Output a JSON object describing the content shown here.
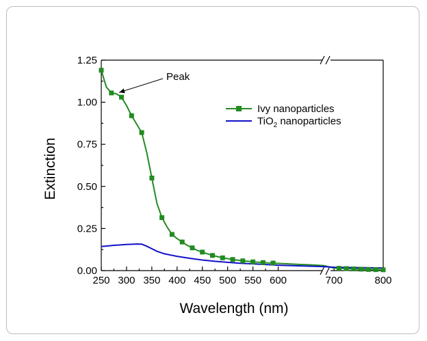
{
  "chart_data": {
    "type": "line",
    "title": "",
    "xlabel": "Wavelength (nm)",
    "ylabel": "Extinction",
    "x_segments": [
      {
        "range": [
          250,
          690
        ],
        "ticks": [
          250,
          300,
          350,
          400,
          450,
          500,
          550,
          600
        ],
        "tick_labels": [
          "250",
          "300",
          "350",
          "400",
          "450",
          "500",
          "550",
          "600"
        ]
      },
      {
        "range": [
          690,
          800
        ],
        "ticks": [
          700,
          800
        ],
        "tick_labels": [
          "700",
          "800"
        ]
      }
    ],
    "axis_break": "//",
    "ylim": [
      0,
      1.25
    ],
    "yticks": [
      0,
      0.25,
      0.5,
      0.75,
      1.0,
      1.25
    ],
    "ytick_labels": [
      "0.00",
      "0.25",
      "0.50",
      "0.75",
      "1.00",
      "1.25"
    ],
    "grid": false,
    "legend_position": "top-right",
    "series": [
      {
        "name": "Ivy nanoparticles",
        "color": "#228B22",
        "marker": "square",
        "points": [
          [
            250,
            1.19
          ],
          [
            260,
            1.09
          ],
          [
            270,
            1.055
          ],
          [
            280,
            1.05
          ],
          [
            290,
            1.03
          ],
          [
            300,
            0.98
          ],
          [
            310,
            0.92
          ],
          [
            320,
            0.87
          ],
          [
            330,
            0.82
          ],
          [
            340,
            0.7
          ],
          [
            350,
            0.55
          ],
          [
            360,
            0.4
          ],
          [
            370,
            0.315
          ],
          [
            380,
            0.26
          ],
          [
            390,
            0.215
          ],
          [
            400,
            0.19
          ],
          [
            410,
            0.17
          ],
          [
            420,
            0.15
          ],
          [
            430,
            0.135
          ],
          [
            440,
            0.12
          ],
          [
            450,
            0.11
          ],
          [
            460,
            0.1
          ],
          [
            470,
            0.09
          ],
          [
            480,
            0.083
          ],
          [
            490,
            0.076
          ],
          [
            500,
            0.071
          ],
          [
            510,
            0.066
          ],
          [
            520,
            0.062
          ],
          [
            530,
            0.058
          ],
          [
            540,
            0.055
          ],
          [
            550,
            0.052
          ],
          [
            560,
            0.05
          ],
          [
            570,
            0.048
          ],
          [
            580,
            0.046
          ],
          [
            590,
            0.045
          ],
          [
            600,
            0.043
          ],
          [
            620,
            0.04
          ],
          [
            640,
            0.037
          ],
          [
            660,
            0.035
          ],
          [
            690,
            0.03
          ],
          [
            700,
            0.015
          ],
          [
            720,
            0.013
          ],
          [
            740,
            0.01
          ],
          [
            760,
            0.008
          ],
          [
            780,
            0.006
          ],
          [
            800,
            0.005
          ]
        ],
        "marker_x": [
          250,
          270,
          290,
          310,
          330,
          350,
          370,
          390,
          410,
          430,
          450,
          470,
          490,
          510,
          530,
          550,
          570,
          590,
          710,
          725,
          740,
          755,
          770,
          785,
          800
        ]
      },
      {
        "name": "TiO2 nanoparticles",
        "color": "#1010C8",
        "marker": "none",
        "points": [
          [
            250,
            0.143
          ],
          [
            275,
            0.15
          ],
          [
            300,
            0.155
          ],
          [
            320,
            0.158
          ],
          [
            330,
            0.157
          ],
          [
            340,
            0.145
          ],
          [
            350,
            0.13
          ],
          [
            360,
            0.115
          ],
          [
            375,
            0.1
          ],
          [
            400,
            0.085
          ],
          [
            425,
            0.073
          ],
          [
            450,
            0.063
          ],
          [
            475,
            0.055
          ],
          [
            500,
            0.049
          ],
          [
            525,
            0.044
          ],
          [
            550,
            0.04
          ],
          [
            575,
            0.036
          ],
          [
            600,
            0.032
          ],
          [
            650,
            0.027
          ],
          [
            690,
            0.024
          ],
          [
            700,
            0.02
          ],
          [
            750,
            0.018
          ],
          [
            800,
            0.016
          ]
        ]
      }
    ],
    "annotations": [
      {
        "text": "Peak",
        "arrow_to": [
          280,
          1.05
        ]
      }
    ]
  },
  "legend_labels": {
    "ivy": "Ivy nanoparticles",
    "tio2_pre": "TiO",
    "tio2_sub": "2",
    "tio2_post": " nanoparticles"
  }
}
